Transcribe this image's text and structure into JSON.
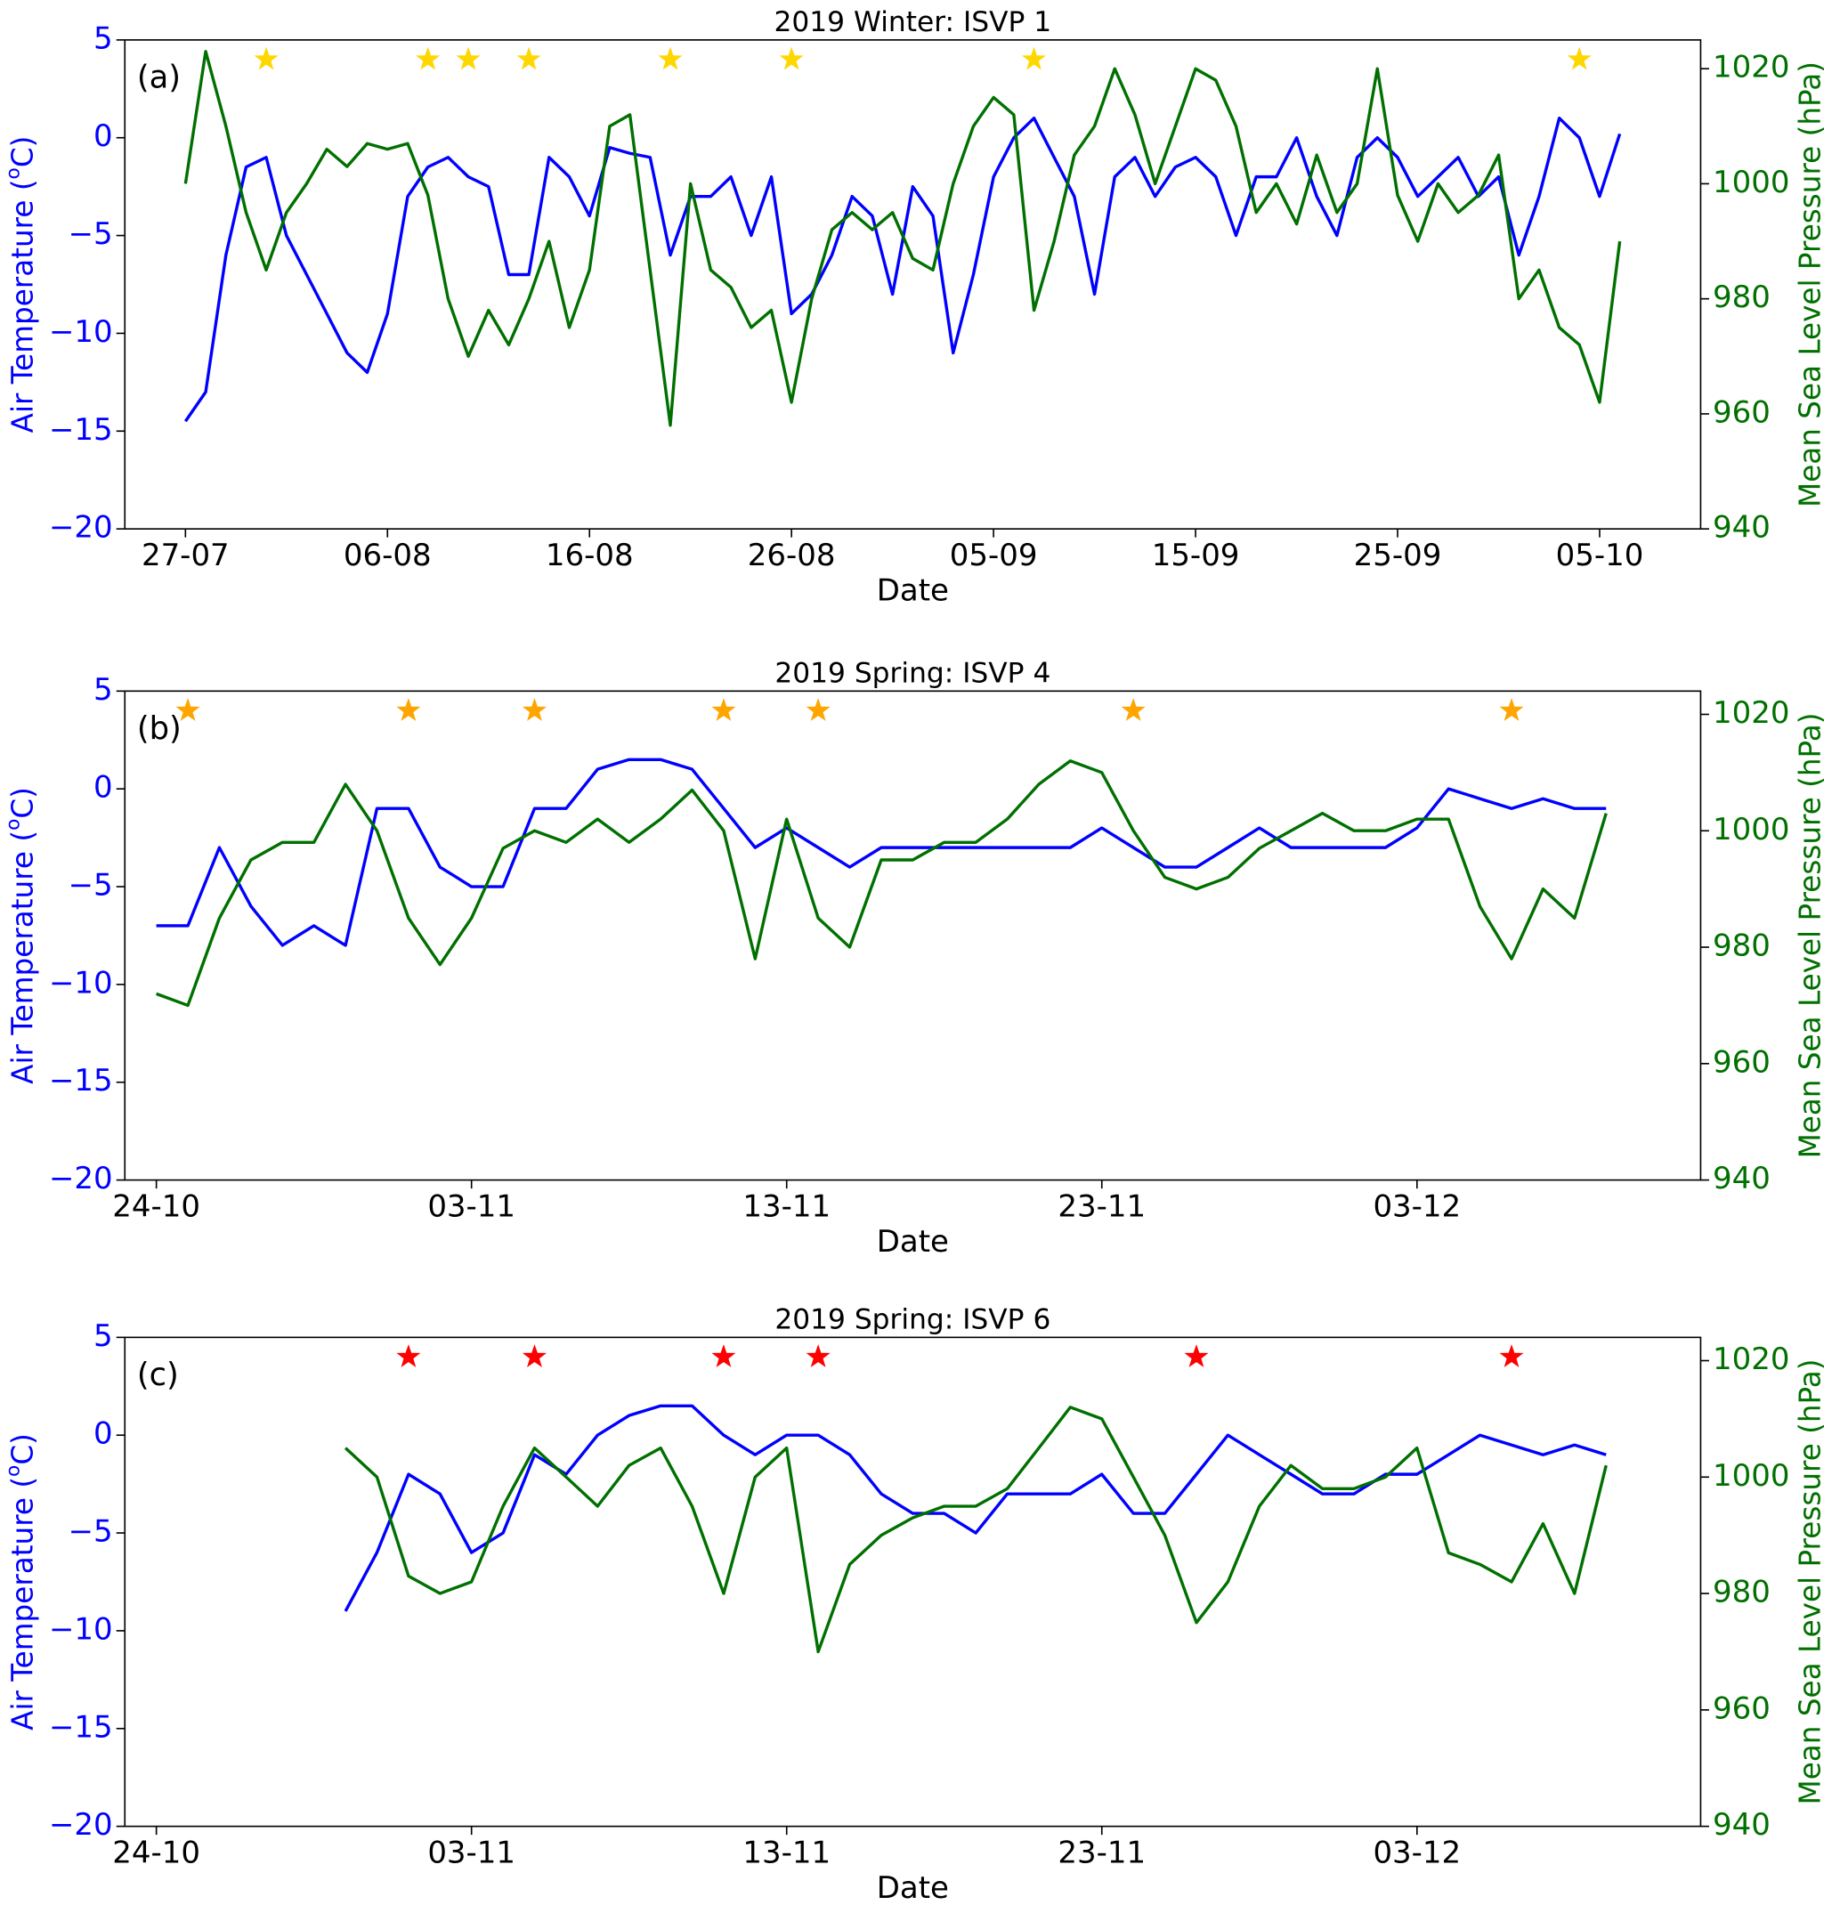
{
  "chart_data": [
    {
      "type": "line",
      "title": "2019 Winter: ISVP 1",
      "panel_label": "(a)",
      "x_label": "Date",
      "xlim": [
        "24-07",
        "10-10"
      ],
      "xticks": [
        "27-07",
        "06-08",
        "16-08",
        "26-08",
        "05-09",
        "15-09",
        "25-09",
        "05-10"
      ],
      "x": [
        "27-07",
        "28-07",
        "29-07",
        "30-07",
        "31-07",
        "01-08",
        "02-08",
        "03-08",
        "04-08",
        "05-08",
        "06-08",
        "07-08",
        "08-08",
        "09-08",
        "10-08",
        "11-08",
        "12-08",
        "13-08",
        "14-08",
        "15-08",
        "16-08",
        "17-08",
        "18-08",
        "19-08",
        "20-08",
        "21-08",
        "22-08",
        "23-08",
        "24-08",
        "25-08",
        "26-08",
        "27-08",
        "28-08",
        "29-08",
        "30-08",
        "31-08",
        "01-09",
        "02-09",
        "03-09",
        "04-09",
        "05-09",
        "06-09",
        "07-09",
        "08-09",
        "09-09",
        "10-09",
        "11-09",
        "12-09",
        "13-09",
        "14-09",
        "15-09",
        "16-09",
        "17-09",
        "18-09",
        "19-09",
        "20-09",
        "21-09",
        "22-09",
        "23-09",
        "24-09",
        "25-09",
        "26-09",
        "27-09",
        "28-09",
        "29-09",
        "30-09",
        "01-10",
        "02-10",
        "03-10",
        "04-10",
        "05-10",
        "06-10"
      ],
      "ylim": [
        -20,
        5
      ],
      "yticks": [
        {
          "value": -20,
          "label": "−20"
        },
        {
          "value": -15,
          "label": "−15"
        },
        {
          "value": -10,
          "label": "−10"
        },
        {
          "value": -5,
          "label": "−5"
        },
        0,
        5
      ],
      "y_label_parts": [
        "Air Temperature (",
        "o",
        "C)"
      ],
      "y_color": "#0000ff",
      "y2lim": [
        940,
        1025
      ],
      "y2ticks": [
        940,
        960,
        980,
        1000,
        1020
      ],
      "y2_label": "Mean Sea Level Pressure (hPa)",
      "y2_color": "#007000",
      "series": [
        {
          "color": "#0000ff",
          "values": [
            -14.5,
            -13,
            -6,
            -1.5,
            -1,
            -5,
            -7,
            -9,
            -11,
            -12,
            -9,
            -3,
            -1.5,
            -1,
            -2,
            -2.5,
            -7,
            -7,
            -1,
            -2,
            -4,
            -0.5,
            -0.8,
            -1,
            -6,
            -3,
            -3,
            -2,
            -5,
            -2,
            -9,
            -8,
            -6,
            -3,
            -4,
            -8,
            -2.5,
            -4,
            -11,
            -7,
            -2,
            0,
            1,
            -1,
            -3,
            -8,
            -2,
            -1,
            -3,
            -1.5,
            -1,
            -2,
            -5,
            -2,
            -2,
            0,
            -3,
            -5,
            -1,
            0,
            -1,
            -3,
            -2,
            -1,
            -3,
            -2,
            -6,
            -3,
            1,
            0,
            -3,
            0.2
          ]
        },
        {
          "color": "#007000",
          "axis": "y2",
          "values": [
            1000,
            1023,
            1010,
            995,
            985,
            995,
            1000,
            1006,
            1003,
            1007,
            1006,
            1007,
            998,
            980,
            970,
            978,
            972,
            980,
            990,
            975,
            985,
            1010,
            1012,
            985,
            958,
            1000,
            985,
            982,
            975,
            978,
            962,
            980,
            992,
            995,
            992,
            995,
            987,
            985,
            1000,
            1010,
            1015,
            1012,
            978,
            990,
            1005,
            1010,
            1020,
            1012,
            1000,
            1010,
            1020,
            1018,
            1010,
            995,
            1000,
            993,
            1005,
            995,
            1000,
            1020,
            998,
            990,
            1000,
            995,
            998,
            1005,
            980,
            985,
            975,
            972,
            962,
            990
          ]
        }
      ],
      "markers": {
        "color": "#ffd700",
        "x": [
          "31-07",
          "08-08",
          "10-08",
          "13-08",
          "20-08",
          "26-08",
          "07-09",
          "04-10"
        ],
        "y": [
          4,
          4,
          4,
          4,
          4,
          4,
          4,
          4
        ]
      }
    },
    {
      "type": "line",
      "title": "2019 Spring: ISVP 4",
      "panel_label": "(b)",
      "x_label": "Date",
      "xlim": [
        "23-10",
        "12-12"
      ],
      "xticks": [
        "24-10",
        "03-11",
        "13-11",
        "23-11",
        "03-12"
      ],
      "x": [
        "24-10",
        "25-10",
        "26-10",
        "27-10",
        "28-10",
        "29-10",
        "30-10",
        "31-10",
        "01-11",
        "02-11",
        "03-11",
        "04-11",
        "05-11",
        "06-11",
        "07-11",
        "08-11",
        "09-11",
        "10-11",
        "11-11",
        "12-11",
        "13-11",
        "14-11",
        "15-11",
        "16-11",
        "17-11",
        "18-11",
        "19-11",
        "20-11",
        "21-11",
        "22-11",
        "23-11",
        "24-11",
        "25-11",
        "26-11",
        "27-11",
        "28-11",
        "29-11",
        "30-11",
        "01-12",
        "02-12",
        "03-12",
        "04-12",
        "05-12",
        "06-12",
        "07-12",
        "08-12",
        "09-12"
      ],
      "ylim": [
        -20,
        5
      ],
      "yticks": [
        {
          "value": -20,
          "label": "−20"
        },
        {
          "value": -15,
          "label": "−15"
        },
        {
          "value": -10,
          "label": "−10"
        },
        {
          "value": -5,
          "label": "−5"
        },
        0,
        5
      ],
      "y_label_parts": [
        "Air Temperature (",
        "o",
        "C)"
      ],
      "y_color": "#0000ff",
      "y2lim": [
        940,
        1024
      ],
      "y2ticks": [
        940,
        960,
        980,
        1000,
        1020
      ],
      "y2_label": "Mean Sea Level Pressure (hPa)",
      "y2_color": "#007000",
      "series": [
        {
          "color": "#0000ff",
          "values": [
            -7,
            -7,
            -3,
            -6,
            -8,
            -7,
            -8,
            -1,
            -1,
            -4,
            -5,
            -5,
            -1,
            -1,
            1,
            1.5,
            1.5,
            1,
            -1,
            -3,
            -2,
            -3,
            -4,
            -3,
            -3,
            -3,
            -3,
            -3,
            -3,
            -3,
            -2,
            -3,
            -4,
            -4,
            -3,
            -2,
            -3,
            -3,
            -3,
            -3,
            -2,
            0,
            -0.5,
            -1,
            -0.5,
            -1,
            -1
          ]
        },
        {
          "color": "#007000",
          "axis": "y2",
          "values": [
            972,
            970,
            985,
            995,
            998,
            998,
            1008,
            1000,
            985,
            977,
            985,
            997,
            1000,
            998,
            1002,
            998,
            1002,
            1007,
            1000,
            978,
            1002,
            985,
            980,
            995,
            995,
            998,
            998,
            1002,
            1008,
            1012,
            1010,
            1000,
            992,
            990,
            992,
            997,
            1000,
            1003,
            1000,
            1000,
            1002,
            1002,
            987,
            978,
            990,
            985,
            1003
          ]
        }
      ],
      "markers": {
        "color": "#ffa500",
        "x": [
          "25-10",
          "01-11",
          "05-11",
          "11-11",
          "14-11",
          "24-11",
          "06-12"
        ],
        "y": [
          4,
          4,
          4,
          4,
          4,
          4,
          4
        ]
      }
    },
    {
      "type": "line",
      "title": "2019 Spring: ISVP 6",
      "panel_label": "(c)",
      "x_label": "Date",
      "xlim": [
        "23-10",
        "12-12"
      ],
      "xticks": [
        "24-10",
        "03-11",
        "13-11",
        "23-11",
        "03-12"
      ],
      "x": [
        "30-10",
        "31-10",
        "01-11",
        "02-11",
        "03-11",
        "04-11",
        "05-11",
        "06-11",
        "07-11",
        "08-11",
        "09-11",
        "10-11",
        "11-11",
        "12-11",
        "13-11",
        "14-11",
        "15-11",
        "16-11",
        "17-11",
        "18-11",
        "19-11",
        "20-11",
        "21-11",
        "22-11",
        "23-11",
        "24-11",
        "25-11",
        "26-11",
        "27-11",
        "28-11",
        "29-11",
        "30-11",
        "01-12",
        "02-12",
        "03-12",
        "04-12",
        "05-12",
        "06-12",
        "07-12",
        "08-12",
        "09-12"
      ],
      "ylim": [
        -20,
        5
      ],
      "yticks": [
        {
          "value": -20,
          "label": "−20"
        },
        {
          "value": -15,
          "label": "−15"
        },
        {
          "value": -10,
          "label": "−10"
        },
        {
          "value": -5,
          "label": "−5"
        },
        0,
        5
      ],
      "y_label_parts": [
        "Air Temperature (",
        "o",
        "C)"
      ],
      "y_color": "#0000ff",
      "y2lim": [
        940,
        1024
      ],
      "y2ticks": [
        940,
        960,
        980,
        1000,
        1020
      ],
      "y2_label": "Mean Sea Level Pressure (hPa)",
      "y2_color": "#007000",
      "series": [
        {
          "color": "#0000ff",
          "values": [
            -9,
            -6,
            -2,
            -3,
            -6,
            -5,
            -1,
            -2,
            0,
            1,
            1.5,
            1.5,
            0,
            -1,
            0,
            0,
            -1,
            -3,
            -4,
            -4,
            -5,
            -3,
            -3,
            -3,
            -2,
            -4,
            -4,
            -2,
            0,
            -1,
            -2,
            -3,
            -3,
            -2,
            -2,
            -1,
            0,
            -0.5,
            -1,
            -0.5,
            -1
          ]
        },
        {
          "color": "#007000",
          "axis": "y2",
          "values": [
            1005,
            1000,
            983,
            980,
            982,
            995,
            1005,
            1000,
            995,
            1002,
            1005,
            995,
            980,
            1000,
            1005,
            970,
            985,
            990,
            993,
            995,
            995,
            998,
            1005,
            1012,
            1010,
            1000,
            990,
            975,
            982,
            995,
            1002,
            998,
            998,
            1000,
            1005,
            987,
            985,
            982,
            992,
            980,
            1002
          ]
        }
      ],
      "markers": {
        "color": "#ff0000",
        "x": [
          "01-11",
          "05-11",
          "11-11",
          "14-11",
          "26-11",
          "06-12"
        ],
        "y": [
          4,
          4,
          4,
          4,
          4,
          4
        ]
      }
    }
  ]
}
